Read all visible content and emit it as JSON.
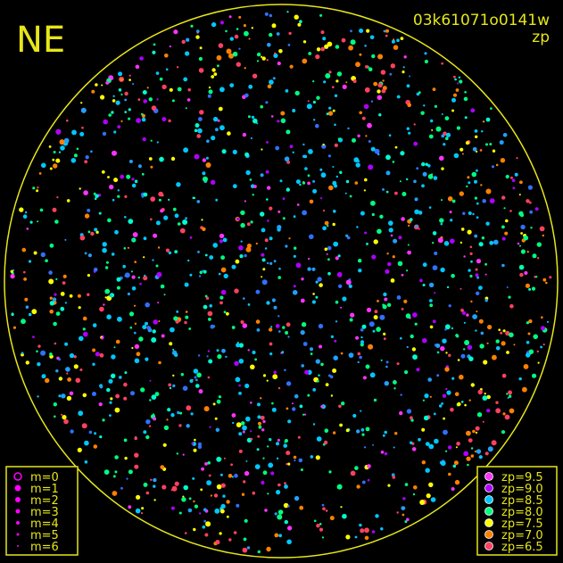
{
  "header": {
    "station": "NE",
    "image_id": "03k61071o0141w",
    "mode": "zp"
  },
  "magnitude_legend": {
    "items": [
      "m=0",
      "m=1",
      "m=2",
      "m=3",
      "m=4",
      "m=5",
      "m=6"
    ],
    "color": "#ff00ff"
  },
  "zp_legend": {
    "items": [
      {
        "label": "zp=9.5",
        "color": "#ff33ff"
      },
      {
        "label": "zp=9.0",
        "color": "#b000ff"
      },
      {
        "label": "zp=8.5",
        "color": "#00c8ff"
      },
      {
        "label": "zp=8.0",
        "color": "#00ff80"
      },
      {
        "label": "zp=7.5",
        "color": "#ffff00"
      },
      {
        "label": "zp=7.0",
        "color": "#ff8000"
      },
      {
        "label": "zp=6.5",
        "color": "#ff4060"
      }
    ]
  }
}
